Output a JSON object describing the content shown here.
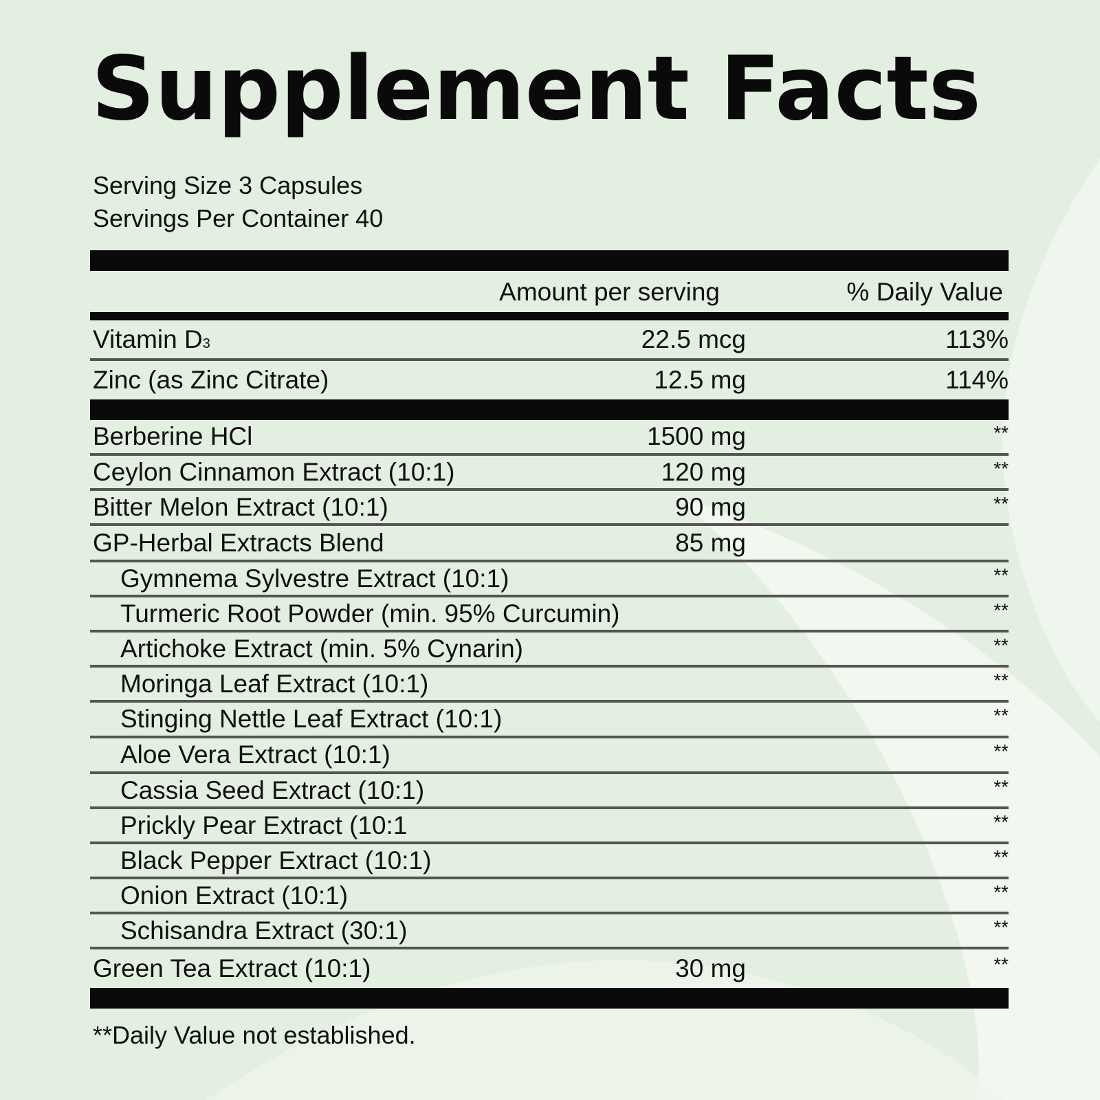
{
  "label": {
    "title": "Supplement Facts",
    "serving_size": "Serving Size 3 Capsules",
    "servings_per_container": "Servings Per Container 40",
    "col_amount": "Amount per serving",
    "col_dv": "% Daily Value",
    "vitamins": [
      {
        "name": "Vitamin D",
        "sub": "3",
        "amount": "22.5 mcg",
        "dv": "113%"
      },
      {
        "name": "Zinc (as Zinc Citrate)",
        "amount": "12.5 mg",
        "dv": "114%"
      }
    ],
    "ingredients": [
      {
        "name": "Berberine HCl",
        "amount": "1500 mg",
        "dv": "**"
      },
      {
        "name": "Ceylon Cinnamon Extract (10:1)",
        "amount": "120 mg",
        "dv": "**"
      },
      {
        "name": "Bitter Melon Extract (10:1)",
        "amount": "90 mg",
        "dv": "**"
      },
      {
        "name": "GP-Herbal Extracts Blend",
        "amount": "85 mg",
        "dv": ""
      }
    ],
    "blend_items": [
      {
        "name": "Gymnema Sylvestre Extract (10:1)",
        "dv": "**"
      },
      {
        "name": "Turmeric Root Powder (min. 95% Curcumin)",
        "dv": "**"
      },
      {
        "name": "Artichoke Extract (min. 5% Cynarin)",
        "dv": "**"
      },
      {
        "name": "Moringa Leaf Extract (10:1)",
        "dv": "**"
      },
      {
        "name": "Stinging Nettle Leaf Extract (10:1)",
        "dv": "**"
      },
      {
        "name": "Aloe Vera Extract (10:1)",
        "dv": "**"
      },
      {
        "name": "Cassia Seed Extract (10:1)",
        "dv": "**"
      },
      {
        "name": "Prickly Pear Extract (10:1",
        "dv": "**"
      },
      {
        "name": "Black Pepper Extract (10:1)",
        "dv": "**"
      },
      {
        "name": "Onion Extract (10:1)",
        "dv": "**"
      },
      {
        "name": "Schisandra Extract (30:1)",
        "dv": "**"
      }
    ],
    "final": {
      "name": "Green Tea Extract (10:1)",
      "amount": "30 mg",
      "dv": "**"
    },
    "footnote": "**Daily Value not established."
  },
  "colors": {
    "background": "#e3efe1",
    "ink": "#0a0a0a",
    "rule": "#555555"
  }
}
